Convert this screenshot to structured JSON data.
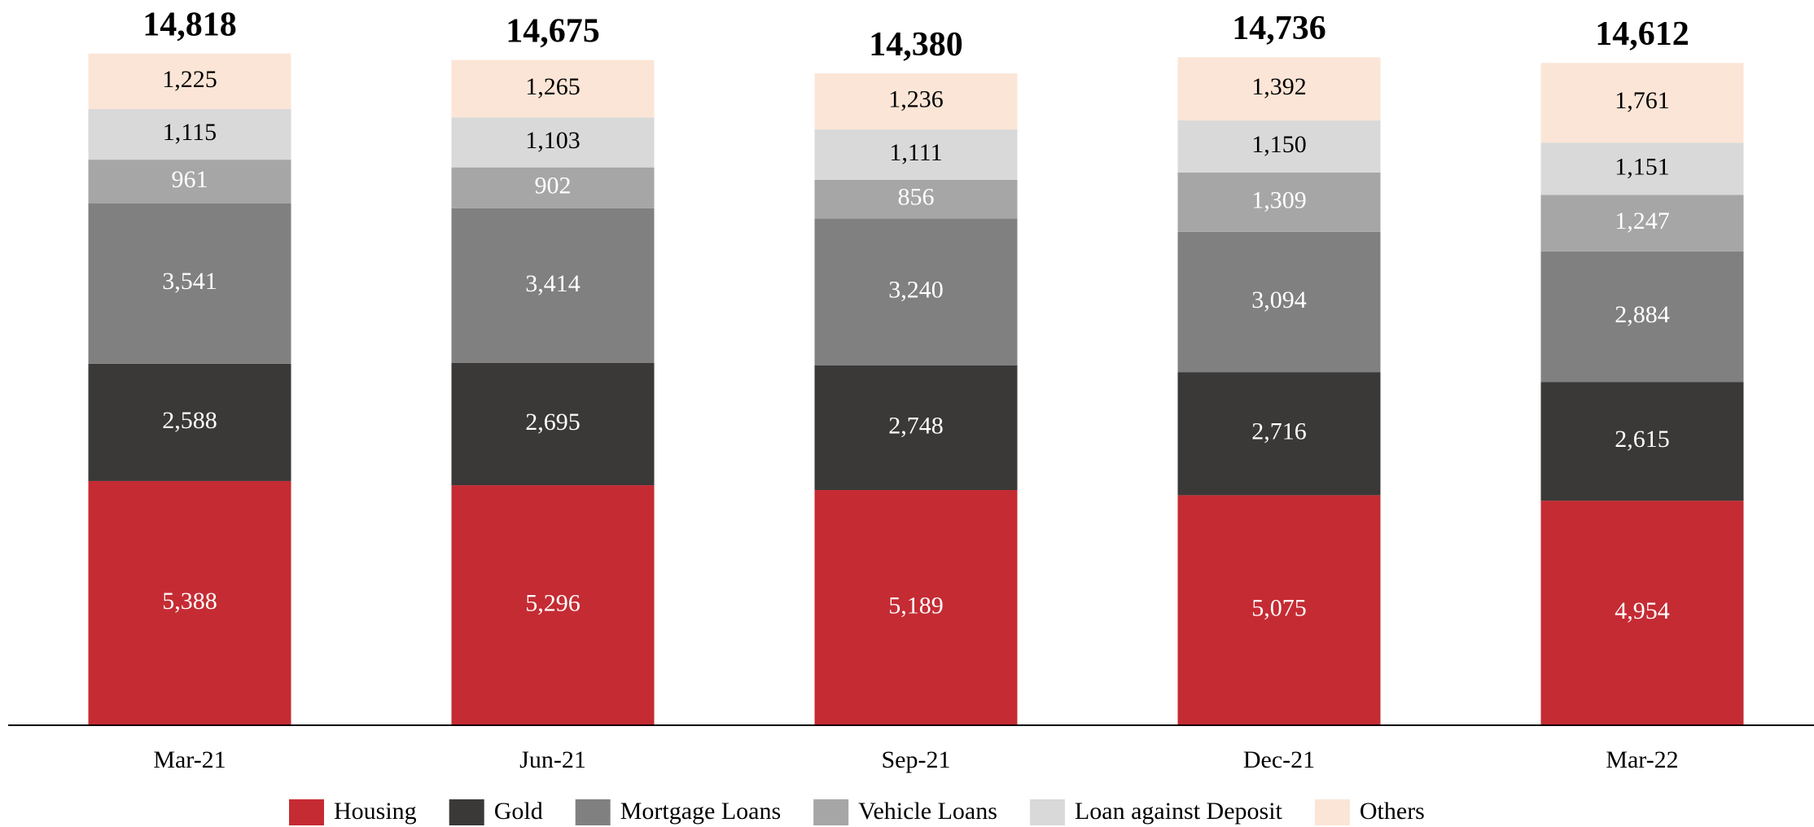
{
  "chart_data": {
    "type": "stacked-bar",
    "categories": [
      "Mar-21",
      "Jun-21",
      "Sep-21",
      "Dec-21",
      "Mar-22"
    ],
    "series": [
      {
        "name": "Housing",
        "color": "#c52b33",
        "values": [
          5388,
          5296,
          5189,
          5075,
          4954
        ],
        "value_labels": [
          "5,388",
          "5,296",
          "5,189",
          "5,075",
          "4,954"
        ]
      },
      {
        "name": "Gold",
        "color": "#3a3938",
        "values": [
          2588,
          2695,
          2748,
          2716,
          2615
        ],
        "value_labels": [
          "2,588",
          "2,695",
          "2,748",
          "2,716",
          "2,615"
        ]
      },
      {
        "name": "Mortgage Loans",
        "color": "#808080",
        "values": [
          3541,
          3414,
          3240,
          3094,
          2884
        ],
        "value_labels": [
          "3,541",
          "3,414",
          "3,240",
          "3,094",
          "2,884"
        ]
      },
      {
        "name": "Vehicle Loans",
        "color": "#a6a6a6",
        "values": [
          961,
          902,
          856,
          1309,
          1247
        ],
        "value_labels": [
          "961",
          "902",
          "856",
          "1,309",
          "1,247"
        ]
      },
      {
        "name": "Loan against Deposit",
        "color": "#d9d9d9",
        "values": [
          1115,
          1103,
          1111,
          1150,
          1151
        ],
        "value_labels": [
          "1,115",
          "1,103",
          "1,111",
          "1,150",
          "1,151"
        ]
      },
      {
        "name": "Others",
        "color": "#fbe5d6",
        "values": [
          1225,
          1265,
          1236,
          1392,
          1761
        ],
        "value_labels": [
          "1,225",
          "1,265",
          "1,236",
          "1,392",
          "1,761"
        ]
      }
    ],
    "totals": [
      14818,
      14675,
      14380,
      14736,
      14612
    ],
    "total_labels": [
      "14,818",
      "14,675",
      "14,380",
      "14,736",
      "14,612"
    ],
    "ylim": [
      0,
      16000
    ],
    "legend": "bottom"
  }
}
